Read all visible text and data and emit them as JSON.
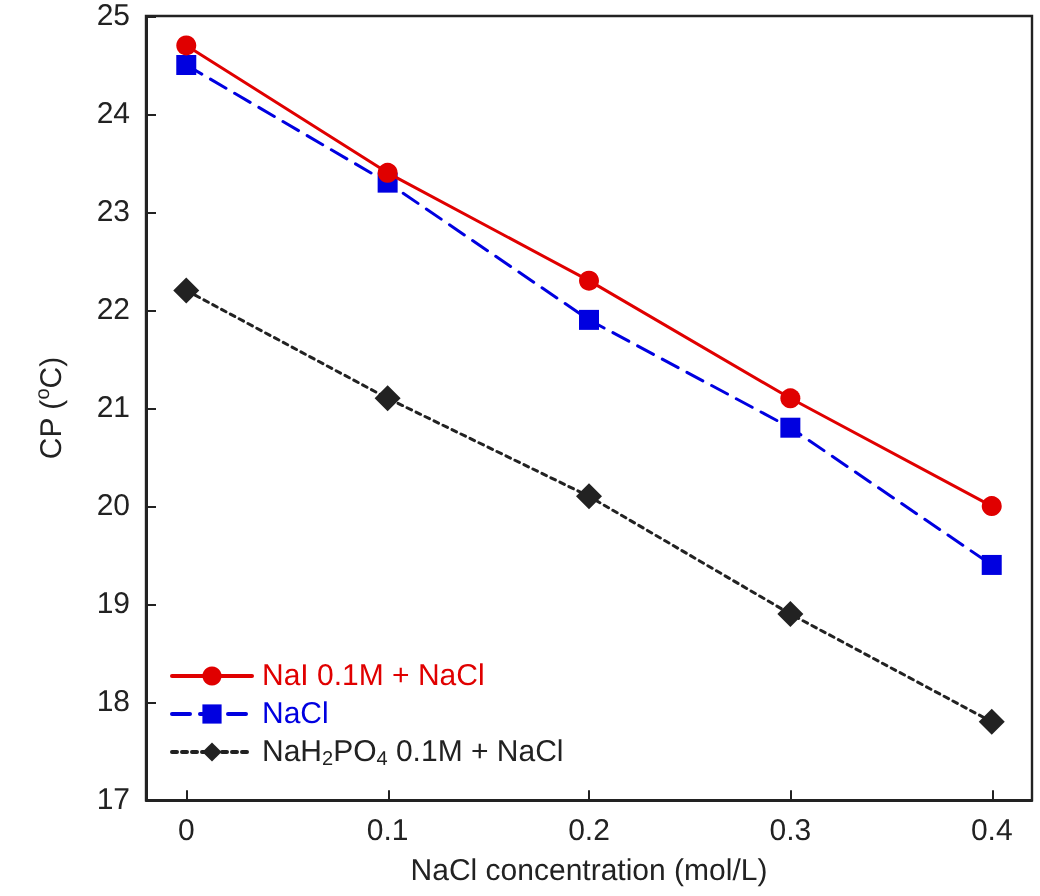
{
  "chart_data": {
    "type": "line",
    "xlabel": "NaCl concentration (mol/L)",
    "ylabel": "CP ($^{o}$C)",
    "x": [
      0,
      0.1,
      0.2,
      0.3,
      0.4
    ],
    "xlim": [
      -0.02,
      0.42
    ],
    "xticks": [
      0,
      0.1,
      0.2,
      0.3,
      0.4
    ],
    "ylim": [
      17,
      25
    ],
    "yticks": [
      17,
      18,
      19,
      20,
      21,
      22,
      23,
      24,
      25
    ],
    "grid": false,
    "legend": "bottom left",
    "series": [
      {
        "name": "NaI 0.1M + NaCl",
        "color": "#e00000",
        "marker": "circle",
        "line_style": "solid",
        "values": [
          24.7,
          23.4,
          22.3,
          21.1,
          20.0
        ]
      },
      {
        "name": "NaCl",
        "color": "#0000e0",
        "marker": "square",
        "line_style": "dashed",
        "values": [
          24.5,
          23.3,
          21.9,
          20.8,
          19.4
        ]
      },
      {
        "name": "NaH$_{2}$PO$_{4}$ 0.1M + NaCl",
        "color": "#222222",
        "marker": "diamond",
        "line_style": "dotted",
        "values": [
          22.2,
          21.1,
          20.1,
          18.9,
          17.8
        ]
      }
    ]
  }
}
